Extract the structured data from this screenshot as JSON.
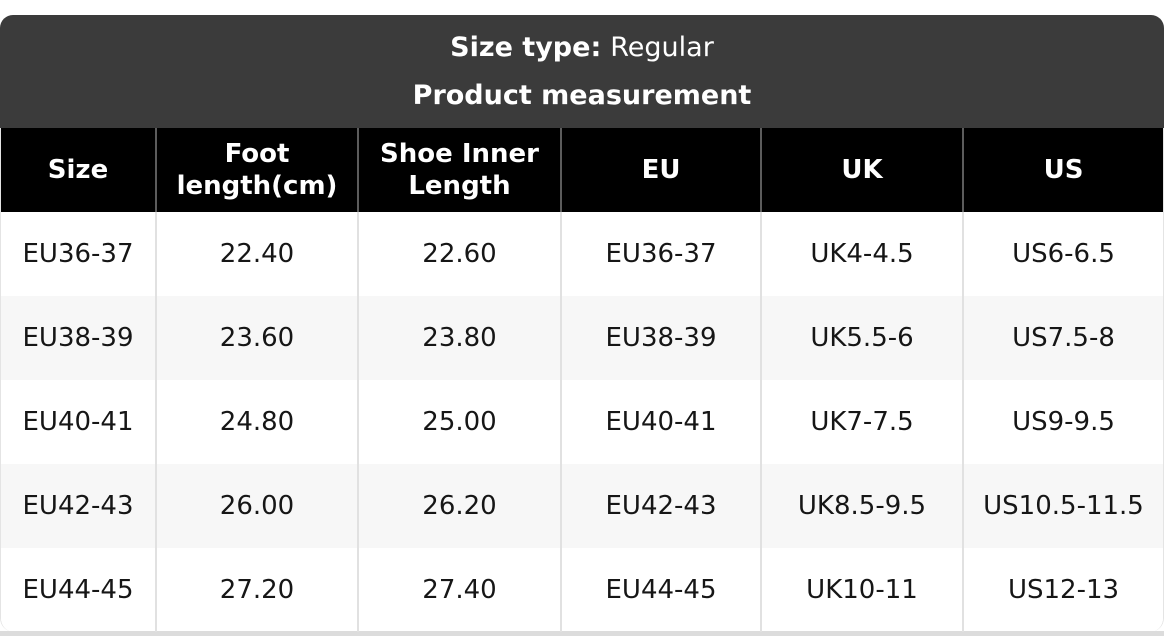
{
  "banner": {
    "size_type_label": "Size type:",
    "size_type_value": "Regular",
    "title": "Product measurement"
  },
  "table": {
    "headers": [
      "Size",
      "Foot length(cm)",
      "Shoe Inner Length",
      "EU",
      "UK",
      "US"
    ],
    "rows": [
      [
        "EU36-37",
        "22.40",
        "22.60",
        "EU36-37",
        "UK4-4.5",
        "US6-6.5"
      ],
      [
        "EU38-39",
        "23.60",
        "23.80",
        "EU38-39",
        "UK5.5-6",
        "US7.5-8"
      ],
      [
        "EU40-41",
        "24.80",
        "25.00",
        "EU40-41",
        "UK7-7.5",
        "US9-9.5"
      ],
      [
        "EU42-43",
        "26.00",
        "26.20",
        "EU42-43",
        "UK8.5-9.5",
        "US10.5-11.5"
      ],
      [
        "EU44-45",
        "27.20",
        "27.40",
        "EU44-45",
        "UK10-11",
        "US12-13"
      ]
    ]
  },
  "colors": {
    "banner_bg": "#3b3b3b",
    "header_bg": "#000000",
    "header_sep": "#5c5c5c",
    "alt_row_bg": "#f7f7f7",
    "body_sep": "#e1e1e1",
    "body_border": "#e4e4e4",
    "band": "#dcdcdc"
  },
  "chart_data": {
    "type": "table",
    "title": "Product measurement",
    "subtitle": "Size type: Regular",
    "columns": [
      "Size",
      "Foot length(cm)",
      "Shoe Inner Length",
      "EU",
      "UK",
      "US"
    ],
    "rows": [
      [
        "EU36-37",
        22.4,
        22.6,
        "EU36-37",
        "UK4-4.5",
        "US6-6.5"
      ],
      [
        "EU38-39",
        23.6,
        23.8,
        "EU38-39",
        "UK5.5-6",
        "US7.5-8"
      ],
      [
        "EU40-41",
        24.8,
        25.0,
        "EU40-41",
        "UK7-7.5",
        "US9-9.5"
      ],
      [
        "EU42-43",
        26.0,
        26.2,
        "EU42-43",
        "UK8.5-9.5",
        "US10.5-11.5"
      ],
      [
        "EU44-45",
        27.2,
        27.4,
        "EU44-45",
        "UK10-11",
        "US12-13"
      ]
    ],
    "layout_hints": {
      "header_style": "black background, white bold text",
      "banner_style": "dark gray rounded banner above header",
      "row_striping": "white / light gray alternating",
      "alignment": "all cells centered"
    }
  }
}
